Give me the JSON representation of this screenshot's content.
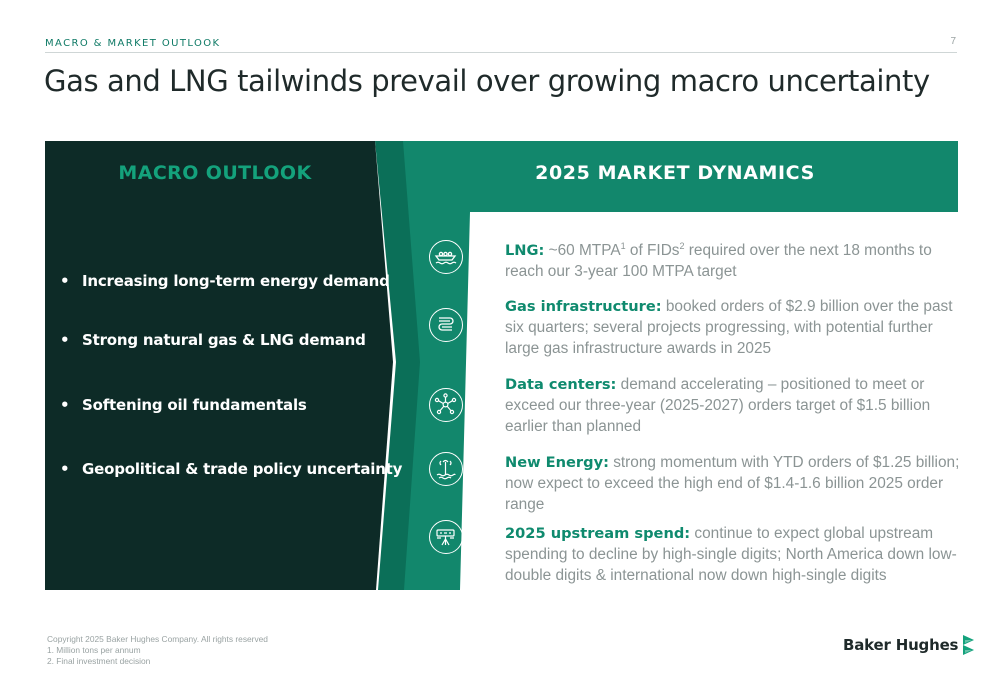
{
  "header": {
    "section_label": "MACRO & MARKET OUTLOOK",
    "page_number": "7",
    "title": "Gas and LNG tailwinds prevail over growing macro uncertainty"
  },
  "macro": {
    "heading": "MACRO OUTLOOK",
    "items": [
      "Increasing long-term energy demand",
      "Strong natural gas & LNG demand",
      "Softening oil fundamentals",
      "Geopolitical & trade policy uncertainty"
    ]
  },
  "dynamics": {
    "heading": "2025 MARKET DYNAMICS",
    "items": [
      {
        "lead": "LNG:",
        "text_a": " ~60 MTPA",
        "sup_a": "1",
        "text_b": " of FIDs",
        "sup_b": "2",
        "text_c": " required over the next 18 months to reach our 3-year 100 MTPA target",
        "icon": "lng-ship-icon"
      },
      {
        "lead": "Gas infrastructure:",
        "text": " booked orders of $2.9 billion over the past six quarters; several projects progressing, with potential further large gas infrastructure awards in 2025",
        "icon": "pipeline-icon"
      },
      {
        "lead": "Data centers:",
        "text": " demand accelerating – positioned to meet or exceed our three-year (2025-2027) orders target of $1.5 billion earlier than planned",
        "icon": "network-nodes-icon"
      },
      {
        "lead": "New Energy:",
        "text": " strong momentum with YTD orders of $1.25 billion; now expect to exceed the high end of $1.4-1.6 billion 2025 order range",
        "icon": "geothermal-icon"
      },
      {
        "lead": "2025 upstream spend:",
        "text": " continue to expect global upstream spending to decline by high-single digits; North America down low-double digits & international now down high-single digits",
        "icon": "upstream-rig-icon"
      }
    ]
  },
  "footer": {
    "copyright": "Copyright 2025 Baker Hughes Company. All rights reserved",
    "note_1": "1. Million tons per annum",
    "note_2": "2. Final investment decision",
    "logo_text": "Baker Hughes"
  },
  "colors": {
    "dark_panel": "#0d2b27",
    "teal": "#12876c",
    "teal_dark": "#0b6f58",
    "accent_green": "#14a27c",
    "body_grey": "#8b9494"
  }
}
